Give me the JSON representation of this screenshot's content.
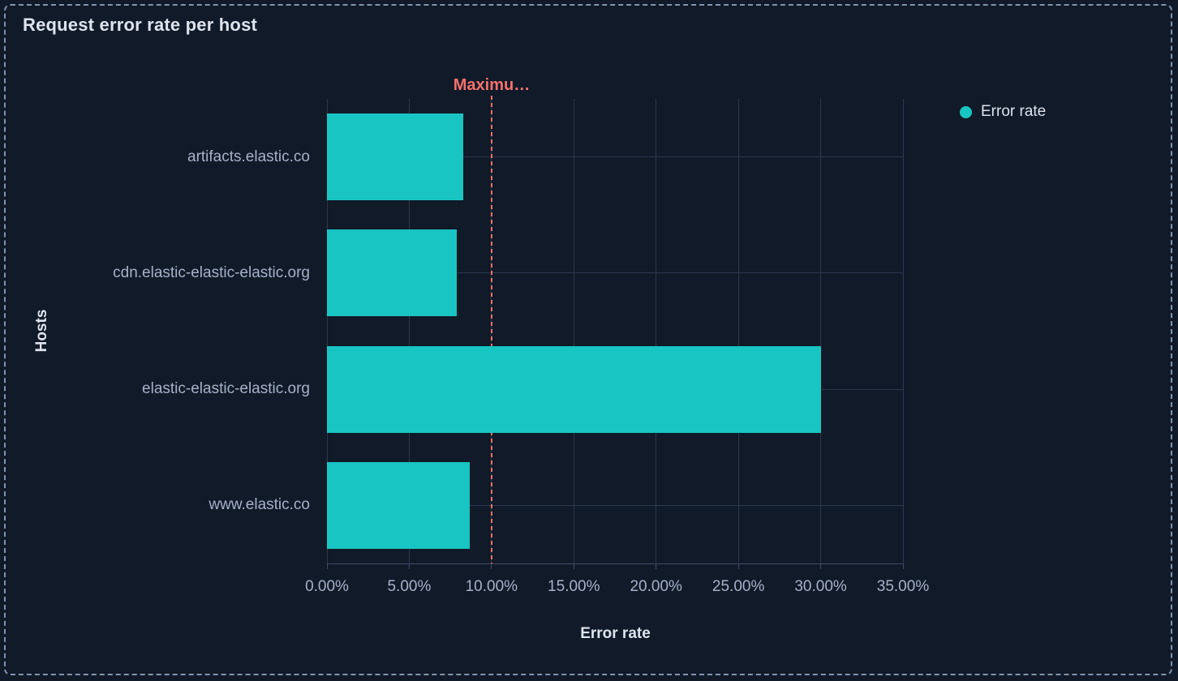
{
  "panel": {
    "title": "Request error rate per host"
  },
  "colors": {
    "background": "#111a28",
    "panel_border": "#8094ae",
    "title_text": "#dde4ef",
    "axis_title_text": "#dde4ef",
    "tick_text": "#a6b1c8",
    "legend_text": "#dce3ee",
    "gridline": "#2c384e",
    "axis_line": "#414d66",
    "bar": "#18c5c2",
    "threshold": "#f5716c"
  },
  "chart_data": {
    "type": "bar",
    "orientation": "horizontal",
    "title": "Request error rate per host",
    "xlabel": "Error rate",
    "ylabel": "Hosts",
    "categories": [
      "artifacts.elastic.co",
      "cdn.elastic-elastic-elastic.org",
      "elastic-elastic-elastic.org",
      "www.elastic.co"
    ],
    "series": [
      {
        "name": "Error rate",
        "unit": "%",
        "values": [
          8.3,
          7.9,
          30.0,
          8.7
        ]
      }
    ],
    "xlim": [
      0,
      35
    ],
    "x_tick_values": [
      0,
      5,
      10,
      15,
      20,
      25,
      30,
      35
    ],
    "x_tick_labels": [
      "0.00%",
      "5.00%",
      "10.00%",
      "15.00%",
      "20.00%",
      "25.00%",
      "30.00%",
      "35.00%"
    ],
    "grid": true,
    "legend_position": "top-right",
    "threshold": {
      "label": "Maximu…",
      "value": 10
    }
  }
}
